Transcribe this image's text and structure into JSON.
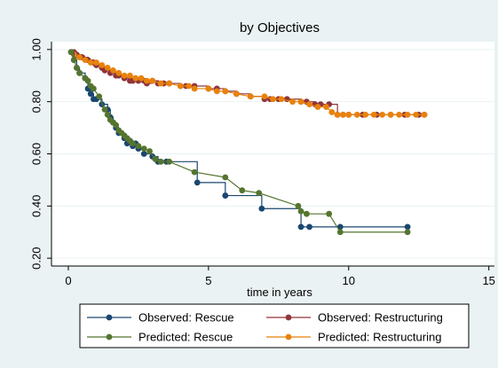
{
  "chart_data": {
    "type": "line",
    "title": "by Objectives",
    "xlabel": "time in years",
    "ylabel": "",
    "xlim": [
      -0.6,
      15.2
    ],
    "ylim": [
      0.17,
      1.03
    ],
    "x_ticks": [
      0,
      5,
      10,
      15
    ],
    "x_tick_labels": [
      "0",
      "5",
      "10",
      "15"
    ],
    "y_ticks": [
      0.2,
      0.4,
      0.6,
      0.8,
      1.0
    ],
    "y_tick_labels": [
      "0.20",
      "0.40",
      "0.60",
      "0.80",
      "1.00"
    ],
    "grid": true,
    "legend_position": "bottom",
    "colors": {
      "background": "#eaf2f3",
      "plot_bg": "#ffffff",
      "grid": "#eaf2f3"
    },
    "series": [
      {
        "name": "Observed: Rescue",
        "kind": "step",
        "color": "#1a476f",
        "x": [
          0.1,
          0.2,
          0.3,
          0.4,
          0.6,
          0.7,
          0.8,
          0.9,
          1.0,
          1.2,
          1.4,
          1.5,
          1.6,
          1.7,
          1.8,
          2.0,
          2.1,
          2.2,
          2.3,
          2.4,
          2.5,
          2.7,
          3.0,
          3.2,
          3.5,
          4.6,
          5.6,
          6.9,
          8.3,
          8.6,
          9.7,
          12.1
        ],
        "y": [
          0.99,
          0.96,
          0.93,
          0.91,
          0.89,
          0.85,
          0.83,
          0.81,
          0.81,
          0.79,
          0.77,
          0.74,
          0.72,
          0.7,
          0.68,
          0.66,
          0.64,
          0.65,
          0.63,
          0.64,
          0.62,
          0.6,
          0.59,
          0.57,
          0.57,
          0.49,
          0.44,
          0.39,
          0.32,
          0.32,
          0.32,
          0.32
        ]
      },
      {
        "name": "Predicted: Rescue",
        "kind": "line",
        "color": "#55752f",
        "x": [
          0.1,
          0.2,
          0.3,
          0.4,
          0.6,
          0.7,
          0.8,
          0.9,
          1.1,
          1.3,
          1.4,
          1.5,
          1.6,
          1.7,
          1.8,
          1.9,
          2.0,
          2.1,
          2.2,
          2.3,
          2.5,
          2.7,
          2.9,
          3.1,
          3.3,
          3.6,
          4.5,
          5.6,
          6.2,
          6.8,
          8.2,
          8.3,
          8.5,
          9.3,
          9.7,
          12.1
        ],
        "y": [
          0.99,
          0.96,
          0.93,
          0.91,
          0.89,
          0.88,
          0.86,
          0.85,
          0.82,
          0.77,
          0.75,
          0.73,
          0.72,
          0.71,
          0.69,
          0.68,
          0.67,
          0.66,
          0.65,
          0.64,
          0.63,
          0.62,
          0.61,
          0.58,
          0.57,
          0.57,
          0.53,
          0.51,
          0.46,
          0.45,
          0.4,
          0.38,
          0.37,
          0.37,
          0.3,
          0.3
        ]
      },
      {
        "name": "Observed: Restructuring",
        "kind": "step",
        "color": "#90353b",
        "x": [
          0.2,
          0.3,
          0.5,
          0.7,
          0.9,
          1.0,
          1.2,
          1.3,
          1.5,
          1.7,
          1.8,
          2.0,
          2.2,
          2.3,
          2.5,
          2.7,
          2.8,
          3.0,
          3.2,
          3.4,
          3.6,
          4.0,
          4.2,
          4.5,
          5.0,
          5.3,
          5.6,
          6.0,
          6.5,
          7.0,
          7.2,
          7.5,
          7.8,
          8.3,
          8.5,
          8.8,
          9.0,
          9.3,
          9.6,
          9.8,
          10.0,
          10.5,
          11.0,
          11.5,
          12.0,
          12.5,
          12.7
        ],
        "y": [
          0.99,
          0.98,
          0.97,
          0.96,
          0.95,
          0.94,
          0.93,
          0.92,
          0.91,
          0.9,
          0.9,
          0.89,
          0.88,
          0.88,
          0.88,
          0.88,
          0.87,
          0.88,
          0.87,
          0.87,
          0.87,
          0.86,
          0.86,
          0.86,
          0.85,
          0.85,
          0.84,
          0.83,
          0.82,
          0.81,
          0.81,
          0.81,
          0.81,
          0.8,
          0.8,
          0.79,
          0.79,
          0.79,
          0.75,
          0.75,
          0.75,
          0.75,
          0.75,
          0.75,
          0.75,
          0.75,
          0.75
        ]
      },
      {
        "name": "Predicted: Restructuring",
        "kind": "line",
        "color": "#e8820c",
        "x": [
          0.1,
          0.2,
          0.4,
          0.6,
          0.8,
          1.0,
          1.2,
          1.4,
          1.6,
          1.8,
          2.0,
          2.2,
          2.4,
          2.6,
          2.8,
          3.0,
          3.3,
          3.6,
          4.0,
          4.3,
          4.5,
          5.0,
          5.3,
          5.6,
          6.0,
          6.5,
          7.0,
          7.3,
          7.6,
          8.0,
          8.3,
          8.6,
          8.9,
          9.2,
          9.4,
          9.6,
          9.8,
          10.0,
          10.3,
          10.6,
          10.9,
          11.2,
          11.5,
          11.8,
          12.1,
          12.4,
          12.7
        ],
        "y": [
          0.99,
          0.98,
          0.97,
          0.96,
          0.95,
          0.95,
          0.94,
          0.93,
          0.92,
          0.91,
          0.9,
          0.9,
          0.89,
          0.89,
          0.88,
          0.88,
          0.87,
          0.87,
          0.86,
          0.86,
          0.85,
          0.85,
          0.84,
          0.84,
          0.83,
          0.82,
          0.82,
          0.81,
          0.81,
          0.8,
          0.8,
          0.79,
          0.78,
          0.78,
          0.76,
          0.75,
          0.75,
          0.75,
          0.75,
          0.75,
          0.75,
          0.75,
          0.75,
          0.75,
          0.75,
          0.75,
          0.75
        ]
      }
    ],
    "legend_entries": [
      {
        "series_index": 0,
        "label": "Observed: Rescue"
      },
      {
        "series_index": 2,
        "label": "Observed: Restructuring"
      },
      {
        "series_index": 1,
        "label": "Predicted: Rescue"
      },
      {
        "series_index": 3,
        "label": "Predicted: Restructuring"
      }
    ]
  }
}
